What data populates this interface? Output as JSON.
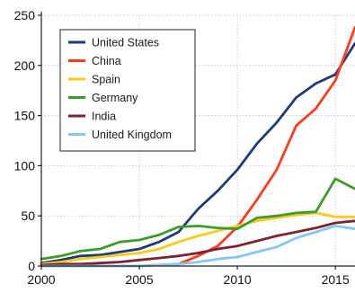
{
  "chart_data": {
    "type": "line",
    "title": "",
    "xlabel": "",
    "ylabel": "",
    "xlim": [
      2000,
      2016
    ],
    "ylim": [
      0,
      250
    ],
    "x_ticks": [
      2000,
      2005,
      2010,
      2015
    ],
    "y_ticks": [
      0,
      50,
      100,
      150,
      200,
      250
    ],
    "grid": true,
    "legend_position": "top-left",
    "x": [
      2000,
      2001,
      2002,
      2003,
      2004,
      2005,
      2006,
      2007,
      2008,
      2009,
      2010,
      2011,
      2012,
      2013,
      2014,
      2015,
      2016
    ],
    "series": [
      {
        "name": "United States",
        "color": "#1f3a78",
        "values": [
          3,
          6,
          10,
          11,
          14,
          17,
          24,
          34,
          57,
          75,
          96,
          122,
          143,
          168,
          182,
          191,
          222
        ]
      },
      {
        "name": "China",
        "color": "#ff3b1f",
        "values": [
          0,
          0,
          0,
          0,
          0,
          0,
          1,
          2,
          10,
          20,
          39,
          66,
          96,
          140,
          157,
          185,
          238
        ]
      },
      {
        "name": "Spain",
        "color": "#f7cc1e",
        "values": [
          2,
          4,
          7,
          9,
          11,
          13,
          17,
          24,
          30,
          35,
          40,
          45,
          48,
          51,
          53,
          49,
          49
        ]
      },
      {
        "name": "Germany",
        "color": "#3f9a2c",
        "values": [
          7,
          10,
          15,
          17,
          24,
          26,
          31,
          39,
          40,
          38,
          37,
          48,
          50,
          53,
          54,
          87,
          77
        ]
      },
      {
        "name": "India",
        "color": "#7a2332",
        "values": [
          1,
          2,
          2,
          3,
          4,
          6,
          8,
          10,
          13,
          17,
          20,
          25,
          30,
          34,
          38,
          43,
          45
        ]
      },
      {
        "name": "United Kingdom",
        "color": "#82c8f0",
        "values": [
          0,
          0,
          0,
          0,
          0,
          0,
          1,
          2,
          4,
          7,
          9,
          14,
          19,
          28,
          34,
          40,
          37
        ]
      }
    ]
  }
}
